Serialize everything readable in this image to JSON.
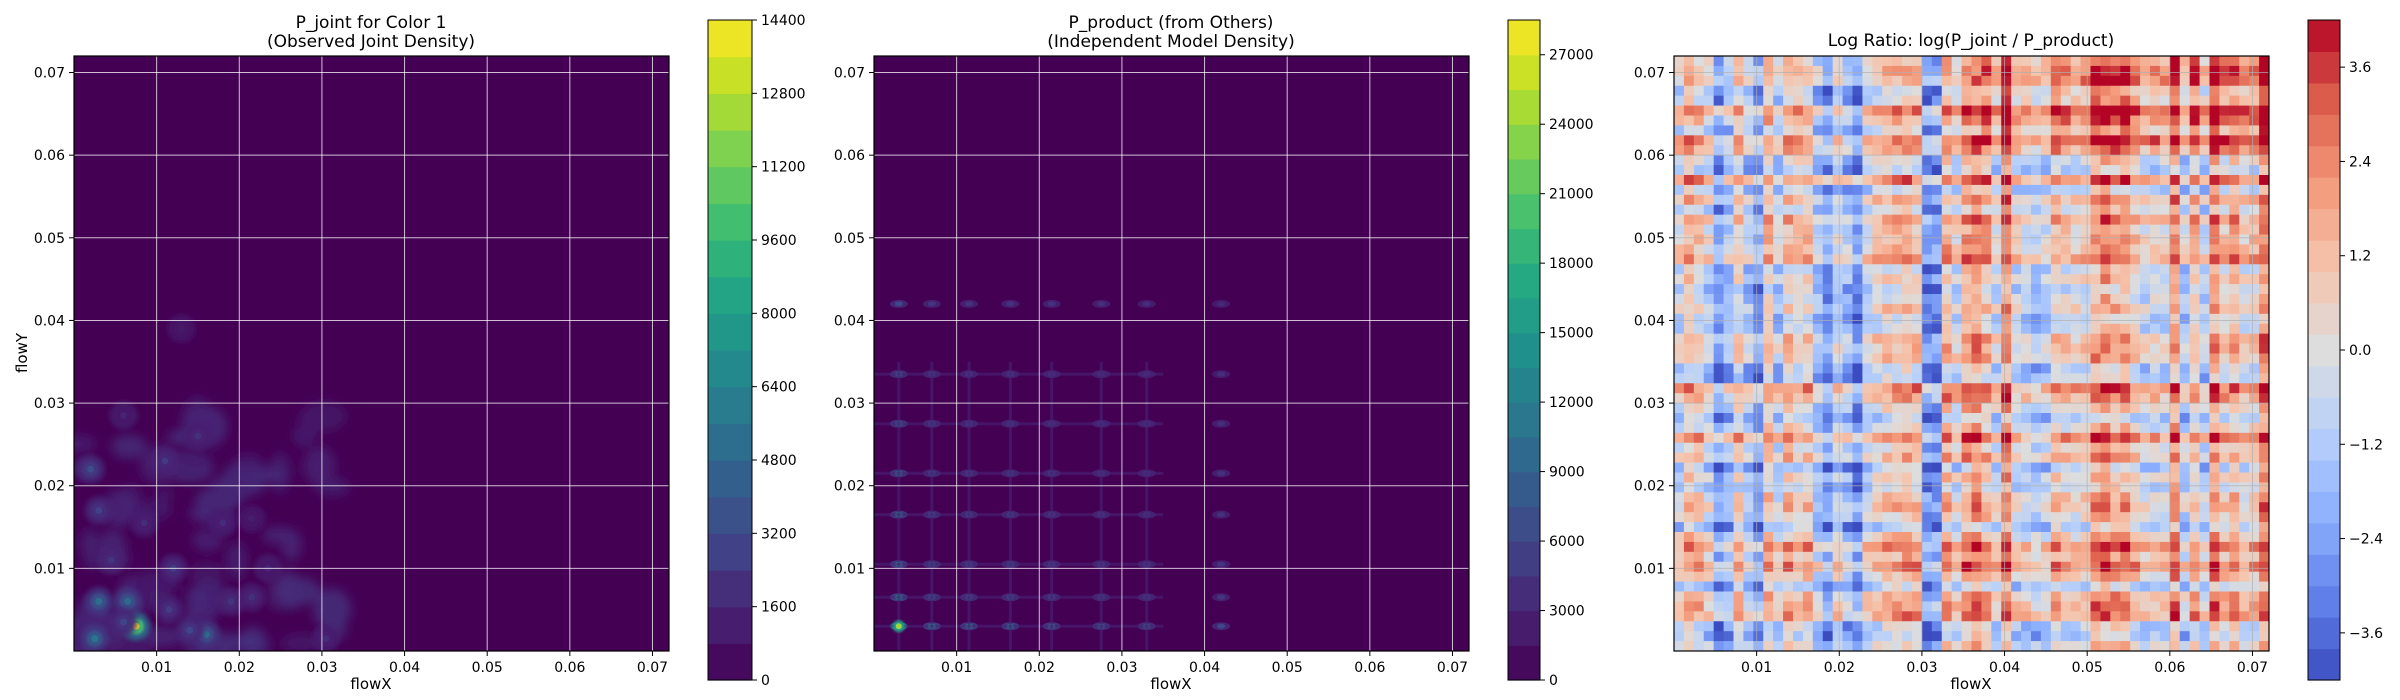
{
  "chart_data": [
    {
      "type": "heatmap",
      "title": "P_joint for Color 1\n(Observed Joint Density)",
      "xlabel": "flowX",
      "ylabel": "flowY",
      "xlim": [
        0,
        0.072
      ],
      "ylim": [
        0,
        0.072
      ],
      "xticks": [
        "0.01",
        "0.02",
        "0.03",
        "0.04",
        "0.05",
        "0.06",
        "0.07"
      ],
      "yticks": [
        "0.01",
        "0.02",
        "0.03",
        "0.04",
        "0.05",
        "0.06",
        "0.07"
      ],
      "colormap": "viridis",
      "colorbar_range": [
        0,
        14400
      ],
      "colorbar_ticks": [
        "0",
        "1600",
        "3200",
        "4800",
        "6400",
        "8000",
        "9600",
        "11200",
        "12800",
        "14400"
      ],
      "grid": true,
      "hotspots": [
        {
          "x": 0.0075,
          "y": 0.003,
          "value": 14400
        },
        {
          "x": 0.003,
          "y": 0.006,
          "value": 5200
        },
        {
          "x": 0.0065,
          "y": 0.006,
          "value": 5000
        },
        {
          "x": 0.0025,
          "y": 0.0015,
          "value": 5600
        },
        {
          "x": 0.016,
          "y": 0.002,
          "value": 4800
        },
        {
          "x": 0.014,
          "y": 0.0025,
          "value": 3000
        },
        {
          "x": 0.002,
          "y": 0.022,
          "value": 3400
        },
        {
          "x": 0.003,
          "y": 0.017,
          "value": 2800
        },
        {
          "x": 0.012,
          "y": 0.01,
          "value": 2600
        },
        {
          "x": 0.011,
          "y": 0.023,
          "value": 2400
        },
        {
          "x": 0.015,
          "y": 0.026,
          "value": 2000
        },
        {
          "x": 0.019,
          "y": 0.006,
          "value": 2200
        },
        {
          "x": 0.0215,
          "y": 0.0065,
          "value": 2000
        },
        {
          "x": 0.018,
          "y": 0.0155,
          "value": 1800
        },
        {
          "x": 0.0115,
          "y": 0.005,
          "value": 2600
        },
        {
          "x": 0.0045,
          "y": 0.011,
          "value": 2200
        },
        {
          "x": 0.0305,
          "y": 0.0015,
          "value": 1800
        },
        {
          "x": 0.0235,
          "y": 0.01,
          "value": 1400
        },
        {
          "x": 0.006,
          "y": 0.0285,
          "value": 1400
        },
        {
          "x": 0.013,
          "y": 0.039,
          "value": 1000
        },
        {
          "x": 0.0085,
          "y": 0.0155,
          "value": 1800
        },
        {
          "x": 0.0215,
          "y": 0.016,
          "value": 1200
        },
        {
          "x": 0.006,
          "y": 0.0035,
          "value": 3000
        }
      ]
    },
    {
      "type": "heatmap",
      "title": "P_product (from Others)\n(Independent Model Density)",
      "xlabel": "flowX",
      "ylabel": "",
      "xlim": [
        0,
        0.072
      ],
      "ylim": [
        0,
        0.072
      ],
      "xticks": [
        "0.01",
        "0.02",
        "0.03",
        "0.04",
        "0.05",
        "0.06",
        "0.07"
      ],
      "yticks": [
        "0.01",
        "0.02",
        "0.03",
        "0.04",
        "0.05",
        "0.06",
        "0.07"
      ],
      "colormap": "viridis",
      "colorbar_range": [
        0,
        28500
      ],
      "colorbar_ticks": [
        "0",
        "3000",
        "6000",
        "9000",
        "12000",
        "15000",
        "18000",
        "21000",
        "24000",
        "27000"
      ],
      "grid": true,
      "x_marginal_peaks": [
        0.003,
        0.007,
        0.0115,
        0.0165,
        0.0215,
        0.0275,
        0.033,
        0.042
      ],
      "y_marginal_peaks": [
        0.003,
        0.0065,
        0.0105,
        0.0165,
        0.0215,
        0.0275,
        0.0335,
        0.042
      ],
      "peak": {
        "x": 0.003,
        "y": 0.003,
        "value": 28500
      }
    },
    {
      "type": "heatmap",
      "title": "Log Ratio: log(P_joint / P_product)",
      "xlabel": "flowX",
      "ylabel": "",
      "xlim": [
        0,
        0.072
      ],
      "ylim": [
        0,
        0.072
      ],
      "xticks": [
        "0.01",
        "0.02",
        "0.03",
        "0.04",
        "0.05",
        "0.06",
        "0.07"
      ],
      "yticks": [
        "0.01",
        "0.02",
        "0.03",
        "0.04",
        "0.05",
        "0.06",
        "0.07"
      ],
      "colormap": "coolwarm",
      "colorbar_range": [
        -4.2,
        4.2
      ],
      "colorbar_ticks": [
        "3.6",
        "2.4",
        "1.2",
        "0.0",
        "−1.2",
        "−2.4",
        "−3.6"
      ],
      "grid": true
    }
  ]
}
